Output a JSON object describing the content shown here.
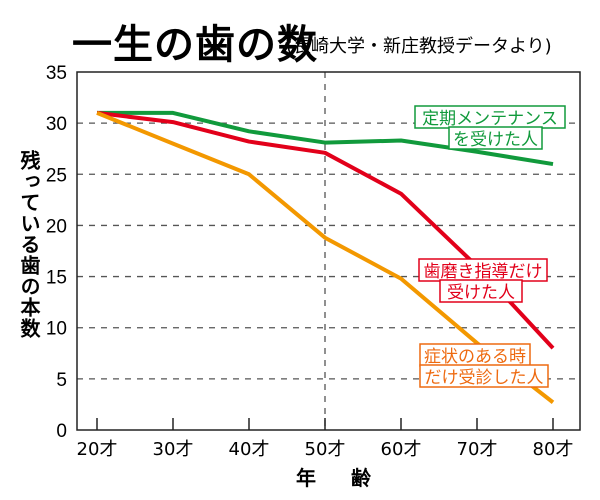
{
  "chart_data": {
    "type": "line",
    "title": "一生の歯の数",
    "subtitle": "(長崎大学・新庄教授データより)",
    "xlabel": "年 齢",
    "ylabel": "残っている歯の本数",
    "categories": [
      "20才",
      "30才",
      "40才",
      "50才",
      "60才",
      "70才",
      "80才"
    ],
    "yticks": [
      "0",
      "5",
      "10",
      "15",
      "20",
      "25",
      "30",
      "35"
    ],
    "ylim": [
      0,
      35
    ],
    "grid": true,
    "series": [
      {
        "name": "定期メンテナンスを受けた人",
        "label_lines": [
          "定期メンテナンス",
          "を受けた人"
        ],
        "color": "#119a3c",
        "values": [
          31,
          31,
          29.2,
          28.1,
          28.3,
          27.2,
          26
        ]
      },
      {
        "name": "歯磨き指導だけ受けた人",
        "label_lines": [
          "歯磨き指導だけ",
          "受けた人"
        ],
        "color": "#e2001a",
        "values": [
          31,
          30.1,
          28.2,
          27.1,
          23.1,
          16,
          8
        ]
      },
      {
        "name": "症状のある時だけ受診した人",
        "label_lines": [
          "症状のある時",
          "だけ受診した人"
        ],
        "color": "#f39800",
        "label_color": "#ee6a10",
        "values": [
          31,
          28,
          25,
          18.8,
          14.8,
          8.5,
          2.7
        ]
      }
    ]
  }
}
